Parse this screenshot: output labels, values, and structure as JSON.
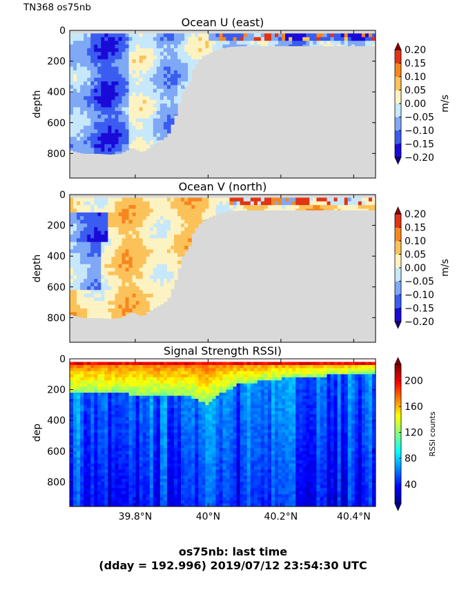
{
  "figure": {
    "corner_label": "TN368 os75nb",
    "footer_line1": "os75nb: last time",
    "footer_line2": "(dday = 192.996) 2019/07/12 23:54:30 UTC",
    "background_color": "#d9d9d9"
  },
  "chart_data": [
    {
      "type": "heatmap",
      "title": "Ocean U (east)",
      "xlabel": "",
      "ylabel": "depth",
      "x_tick_labels": [
        "39.8°N",
        "40°N",
        "40.2°N",
        "40.4°N"
      ],
      "x_ticks": [
        39.8,
        40.0,
        40.2,
        40.4
      ],
      "xlim": [
        39.62,
        40.46
      ],
      "ylim": [
        960,
        0
      ],
      "y_ticks": [
        0,
        200,
        400,
        600,
        800
      ],
      "y_tick_labels": [
        "0",
        "200",
        "400",
        "600",
        "800"
      ],
      "colorbar": {
        "label": "m/s",
        "ticks": [
          0.2,
          0.15,
          0.1,
          0.05,
          0.0,
          -0.05,
          -0.1,
          -0.15,
          -0.2
        ],
        "tick_labels": [
          "0.20",
          "0.15",
          "0.10",
          "0.05",
          "0.00",
          "−0.05",
          "−0.10",
          "−0.15",
          "−0.20"
        ],
        "range": [
          -0.2,
          0.2
        ],
        "levels": [
          {
            "color": "#1a0ad8"
          },
          {
            "color": "#3a5cf0"
          },
          {
            "color": "#7fa8f6"
          },
          {
            "color": "#c7e8fa"
          },
          {
            "color": "#fdf3c2"
          },
          {
            "color": "#fcc25a"
          },
          {
            "color": "#f7861e"
          },
          {
            "color": "#e23414"
          }
        ]
      },
      "bottom_depth": [
        {
          "lat": 39.62,
          "depth": 775
        },
        {
          "lat": 39.64,
          "depth": 790
        },
        {
          "lat": 39.66,
          "depth": 800
        },
        {
          "lat": 39.7,
          "depth": 800
        },
        {
          "lat": 39.73,
          "depth": 805
        },
        {
          "lat": 39.76,
          "depth": 800
        },
        {
          "lat": 39.79,
          "depth": 760
        },
        {
          "lat": 39.82,
          "depth": 790
        },
        {
          "lat": 39.85,
          "depth": 740
        },
        {
          "lat": 39.87,
          "depth": 715
        },
        {
          "lat": 39.89,
          "depth": 680
        },
        {
          "lat": 39.91,
          "depth": 560
        },
        {
          "lat": 39.93,
          "depth": 400
        },
        {
          "lat": 39.95,
          "depth": 330
        },
        {
          "lat": 39.96,
          "depth": 240
        },
        {
          "lat": 39.98,
          "depth": 180
        },
        {
          "lat": 40.0,
          "depth": 150
        },
        {
          "lat": 40.03,
          "depth": 120
        },
        {
          "lat": 40.06,
          "depth": 105
        },
        {
          "lat": 40.1,
          "depth": 100
        },
        {
          "lat": 40.46,
          "depth": 100
        }
      ]
    },
    {
      "type": "heatmap",
      "title": "Ocean V (north)",
      "xlabel": "",
      "ylabel": "depth",
      "x_tick_labels": [
        "39.8°N",
        "40°N",
        "40.2°N",
        "40.4°N"
      ],
      "x_ticks": [
        39.8,
        40.0,
        40.2,
        40.4
      ],
      "xlim": [
        39.62,
        40.46
      ],
      "ylim": [
        960,
        0
      ],
      "y_ticks": [
        0,
        200,
        400,
        600,
        800
      ],
      "y_tick_labels": [
        "0",
        "200",
        "400",
        "600",
        "800"
      ],
      "colorbar": {
        "label": "m/s",
        "ticks": [
          0.2,
          0.15,
          0.1,
          0.05,
          0.0,
          -0.05,
          -0.1,
          -0.15,
          -0.2
        ],
        "tick_labels": [
          "0.20",
          "0.15",
          "0.10",
          "0.05",
          "0.00",
          "−0.05",
          "−0.10",
          "−0.15",
          "−0.20"
        ],
        "range": [
          -0.2,
          0.2
        ],
        "levels": [
          {
            "color": "#1a0ad8"
          },
          {
            "color": "#3a5cf0"
          },
          {
            "color": "#7fa8f6"
          },
          {
            "color": "#c7e8fa"
          },
          {
            "color": "#fdf3c2"
          },
          {
            "color": "#fcc25a"
          },
          {
            "color": "#f7861e"
          },
          {
            "color": "#e23414"
          }
        ]
      },
      "bottom_depth": [
        {
          "lat": 39.62,
          "depth": 775
        },
        {
          "lat": 39.64,
          "depth": 790
        },
        {
          "lat": 39.66,
          "depth": 800
        },
        {
          "lat": 39.7,
          "depth": 800
        },
        {
          "lat": 39.73,
          "depth": 805
        },
        {
          "lat": 39.76,
          "depth": 800
        },
        {
          "lat": 39.79,
          "depth": 760
        },
        {
          "lat": 39.82,
          "depth": 790
        },
        {
          "lat": 39.85,
          "depth": 740
        },
        {
          "lat": 39.87,
          "depth": 715
        },
        {
          "lat": 39.89,
          "depth": 680
        },
        {
          "lat": 39.91,
          "depth": 560
        },
        {
          "lat": 39.93,
          "depth": 400
        },
        {
          "lat": 39.95,
          "depth": 330
        },
        {
          "lat": 39.96,
          "depth": 240
        },
        {
          "lat": 39.98,
          "depth": 180
        },
        {
          "lat": 40.0,
          "depth": 150
        },
        {
          "lat": 40.03,
          "depth": 120
        },
        {
          "lat": 40.06,
          "depth": 105
        },
        {
          "lat": 40.1,
          "depth": 100
        },
        {
          "lat": 40.46,
          "depth": 100
        }
      ]
    },
    {
      "type": "heatmap",
      "title": "Signal Strength RSSI)",
      "xlabel": "",
      "ylabel": "dep",
      "x_tick_labels": [
        "39.8°N",
        "40°N",
        "40.2°N",
        "40.4°N"
      ],
      "x_ticks": [
        39.8,
        40.0,
        40.2,
        40.4
      ],
      "xlim": [
        39.62,
        40.46
      ],
      "ylim": [
        960,
        0
      ],
      "y_ticks": [
        0,
        200,
        400,
        600,
        800
      ],
      "y_tick_labels": [
        "0",
        "200",
        "400",
        "600",
        "800"
      ],
      "colorbar": {
        "label": "RSSI counts",
        "ticks": [
          200,
          160,
          120,
          80,
          40
        ],
        "tick_labels": [
          "200",
          "160",
          "120",
          "80",
          "40"
        ],
        "range": [
          10,
          225
        ],
        "colormap": [
          "#00008f",
          "#0000ff",
          "#0080ff",
          "#00ffff",
          "#80ff80",
          "#ffff00",
          "#ff8000",
          "#ff0000",
          "#800000"
        ]
      },
      "surface_band_depth": [
        {
          "lat": 39.62,
          "depth": 210
        },
        {
          "lat": 39.95,
          "depth": 230
        },
        {
          "lat": 40.0,
          "depth": 290
        },
        {
          "lat": 40.02,
          "depth": 240
        },
        {
          "lat": 40.08,
          "depth": 160
        },
        {
          "lat": 40.2,
          "depth": 120
        },
        {
          "lat": 40.46,
          "depth": 80
        }
      ]
    }
  ]
}
